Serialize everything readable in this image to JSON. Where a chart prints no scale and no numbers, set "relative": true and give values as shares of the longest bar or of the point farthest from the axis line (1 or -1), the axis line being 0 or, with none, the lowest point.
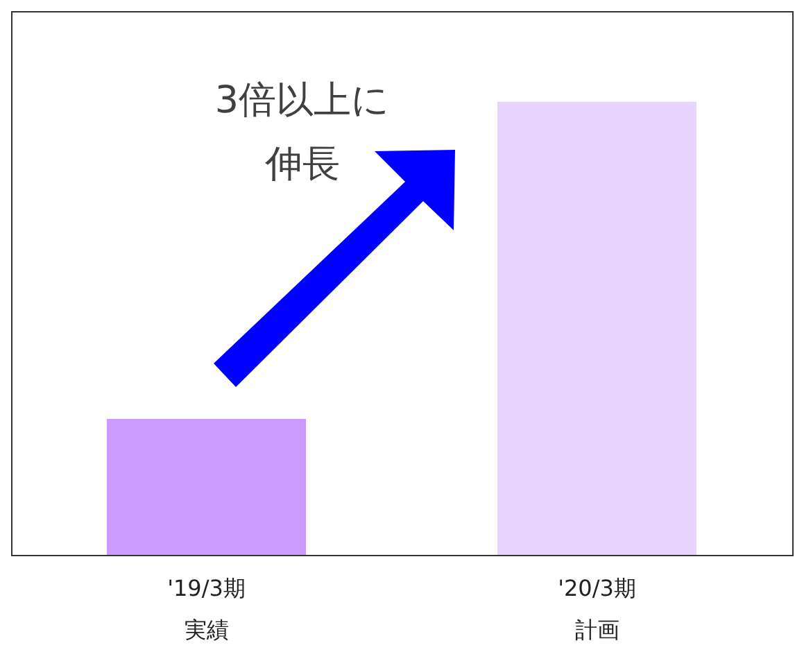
{
  "chart_data": {
    "type": "bar",
    "relative": true,
    "categories": [
      "'19/3期実績",
      "'20/3期計画"
    ],
    "values": [
      0.3,
      1
    ],
    "colors": [
      "#cc99ff",
      "#e8d5ff"
    ],
    "annotations": [
      "3倍以上に伸長"
    ]
  }
}
